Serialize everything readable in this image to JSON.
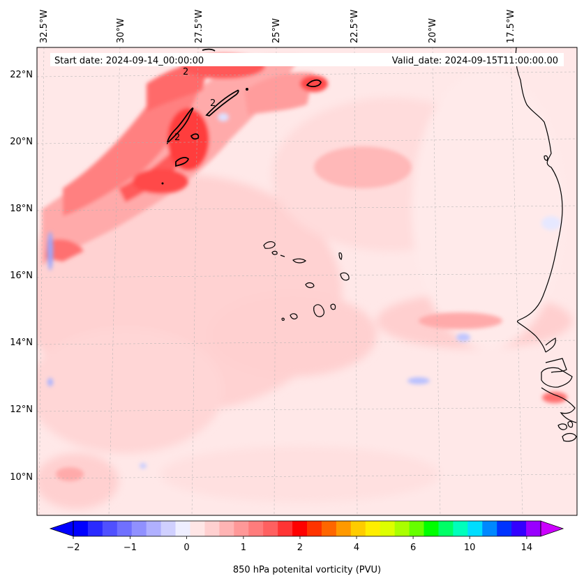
{
  "map": {
    "header": {
      "start_date": "Start date: 2024-09-14_00:00:00",
      "valid_date": "Valid_date: 2024-09-15T11:00:00.00"
    },
    "longitude_labels": [
      "32.5°W",
      "30°W",
      "27.5°W",
      "25°W",
      "22.5°W",
      "20°W",
      "17.5°W"
    ],
    "latitude_labels": [
      "22°N",
      "20°N",
      "18°N",
      "16°N",
      "14°N",
      "12°N",
      "10°N"
    ],
    "contour_label": "2",
    "colorbar": {
      "label": "850 hPa potenital vorticity (PVU)",
      "ticks": [
        "−2",
        "−1",
        "0",
        "1",
        "2",
        "4",
        "6",
        "10",
        "14"
      ],
      "colors": [
        "#0000ff",
        "#2a2aff",
        "#5050ff",
        "#7070ff",
        "#9090ff",
        "#b0b0ff",
        "#d0d0ff",
        "#eeeeff",
        "#ffe6e6",
        "#ffd0d0",
        "#ffb4b4",
        "#ff9898",
        "#ff7c7c",
        "#ff6060",
        "#ff3434",
        "#ff0000",
        "#ff3300",
        "#ff6600",
        "#ff9900",
        "#ffcc00",
        "#ffee00",
        "#ddff00",
        "#aaff00",
        "#66ff00",
        "#00ff00",
        "#00ff66",
        "#00ffbb",
        "#00ddff",
        "#0088ff",
        "#0033ff",
        "#3300ff",
        "#9900ff"
      ],
      "under_color": "#0000ff",
      "over_color": "#cc00ff"
    }
  }
}
